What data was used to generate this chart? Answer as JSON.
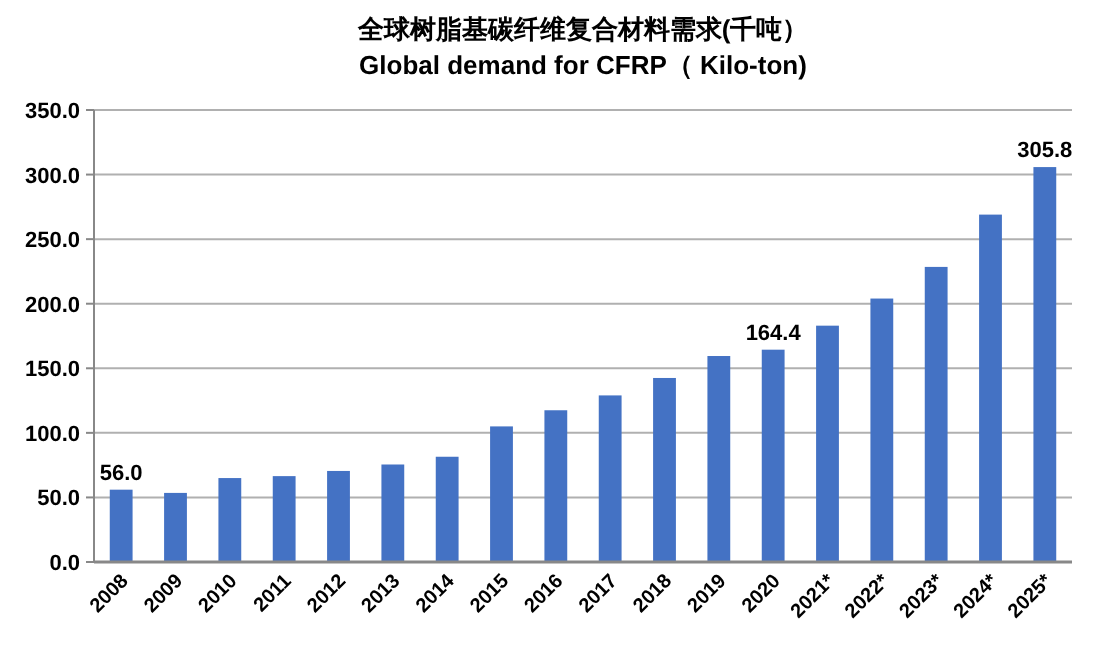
{
  "chart_data": {
    "type": "bar",
    "title": "全球树脂基碳纤维复合材料需求(千吨）",
    "subtitle": "Global demand for CFRP（ Kilo-ton)",
    "categories": [
      "2008",
      "2009",
      "2010",
      "2011",
      "2012",
      "2013",
      "2014",
      "2015",
      "2016",
      "2017",
      "2018",
      "2019",
      "2020",
      "2021*",
      "2022*",
      "2023*",
      "2024*",
      "2025*"
    ],
    "values": [
      56.0,
      53.5,
      65,
      66.5,
      70.5,
      75.5,
      81.5,
      105,
      117.5,
      129,
      142.5,
      159.5,
      164.4,
      183,
      204,
      228.5,
      269,
      305.8
    ],
    "value_labels": [
      "56.0",
      null,
      null,
      null,
      null,
      null,
      null,
      null,
      null,
      null,
      null,
      null,
      "164.4",
      null,
      null,
      null,
      null,
      "305.8"
    ],
    "color": "#4472c4",
    "ylim": [
      0,
      350
    ],
    "yticks": [
      {
        "value": 0,
        "label": "0.0"
      },
      {
        "value": 50,
        "label": "50.0"
      },
      {
        "value": 100,
        "label": "100.0"
      },
      {
        "value": 150,
        "label": "150.0"
      },
      {
        "value": 200,
        "label": "200.0"
      },
      {
        "value": 250,
        "label": "250.0"
      },
      {
        "value": 300,
        "label": "300.0"
      },
      {
        "value": 350,
        "label": "350.0"
      }
    ],
    "grid": "y"
  }
}
